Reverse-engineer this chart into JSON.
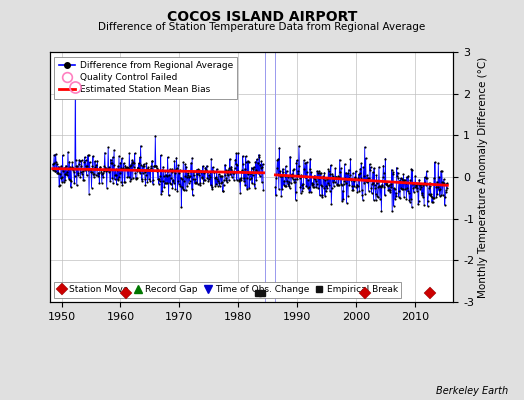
{
  "title": "COCOS ISLAND AIRPORT",
  "subtitle": "Difference of Station Temperature Data from Regional Average",
  "ylabel": "Monthly Temperature Anomaly Difference (°C)",
  "xlim": [
    1948,
    2016.5
  ],
  "ylim": [
    -3,
    3
  ],
  "yticks": [
    -3,
    -2,
    -1,
    0,
    1,
    2,
    3
  ],
  "xticks": [
    1950,
    1960,
    1970,
    1980,
    1990,
    2000,
    2010
  ],
  "background_color": "#e0e0e0",
  "plot_bg_color": "#ffffff",
  "grid_color": "#c0c0c0",
  "station_move_years": [
    1961.0,
    2001.5,
    2012.5
  ],
  "empirical_break_years": [
    1983.3,
    1984.0
  ],
  "gap_x1": 1984.5,
  "gap_x2": 1986.2,
  "seg1_start": 1948.5,
  "seg1_end": 1984.3,
  "seg2_start": 1986.3,
  "seg2_end": 2015.5,
  "bias_seg1": [
    0.2,
    0.1
  ],
  "bias_seg2": [
    0.05,
    -0.2
  ],
  "outlier_year": 1952.3,
  "outlier_value": 2.15,
  "seed": 42
}
